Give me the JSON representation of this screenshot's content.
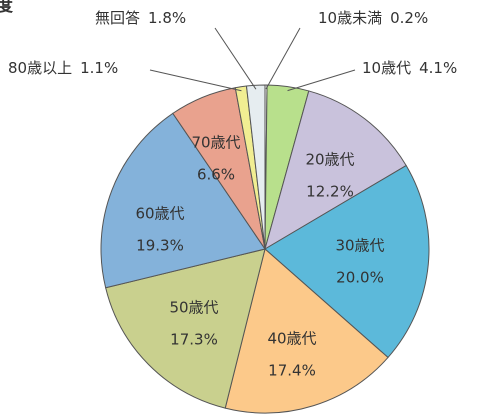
{
  "chart_data": {
    "type": "pie",
    "title": "度",
    "categories": [
      "10歳未満",
      "10歳代",
      "20歳代",
      "30歳代",
      "40歳代",
      "50歳代",
      "60歳代",
      "70歳代",
      "80歳以上",
      "無回答"
    ],
    "values": [
      0.2,
      4.1,
      12.2,
      20.0,
      17.4,
      17.3,
      19.3,
      6.6,
      1.1,
      1.8
    ],
    "value_labels": [
      "0.2%",
      "4.1%",
      "12.2%",
      "20.0%",
      "17.4%",
      "17.3%",
      "19.3%",
      "6.6%",
      "1.1%",
      "1.8%"
    ],
    "colors": [
      "#f4f4f4",
      "#b8e08c",
      "#c9c2dc",
      "#5cb9da",
      "#fcc98a",
      "#c9d08e",
      "#84b2da",
      "#e9a28e",
      "#f1ee92",
      "#e6edf0"
    ]
  }
}
